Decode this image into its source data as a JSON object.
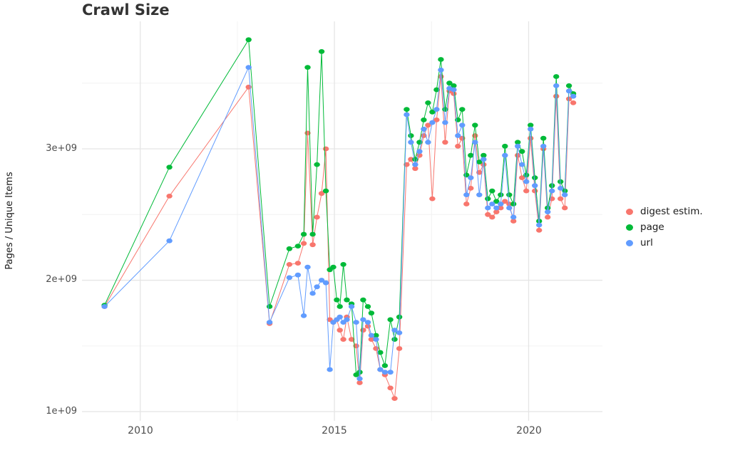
{
  "title": "Crawl Size",
  "ylabel": "Pages / Unique Items",
  "legend": [
    {
      "label": "digest estim.",
      "color": "#F8766D"
    },
    {
      "label": "page",
      "color": "#00BA38"
    },
    {
      "label": "url",
      "color": "#619CFF"
    }
  ],
  "chart_data": {
    "type": "line",
    "title": "Crawl Size",
    "xlabel": "",
    "ylabel": "Pages / Unique Items",
    "x_unit": "decimal year (crawl date)",
    "y_unit": "count x 1e9 (pages / unique items)",
    "xlim": [
      2008.5,
      2021.9
    ],
    "ylim": [
      0.93,
      3.97
    ],
    "x_ticks": [
      2010,
      2015,
      2020
    ],
    "x_tick_labels": [
      "2010",
      "2015",
      "2020"
    ],
    "y_ticks": [
      1,
      2,
      3
    ],
    "y_tick_labels": [
      "1e+09",
      "2e+09",
      "3e+09"
    ],
    "x_minor_gridlines": [
      2012.5,
      2017.5
    ],
    "y_minor_gridlines": [
      1.5,
      2.5,
      3.5
    ],
    "grid": true,
    "legend_position": "right",
    "series": [
      {
        "name": "digest estim.",
        "color": "#F8766D",
        "points": [
          [
            2009.08,
            1.8
          ],
          [
            2010.75,
            2.64
          ],
          [
            2012.79,
            3.47
          ],
          [
            2013.33,
            1.67
          ],
          [
            2013.84,
            2.12
          ],
          [
            2014.06,
            2.13
          ],
          [
            2014.21,
            2.28
          ],
          [
            2014.31,
            3.12
          ],
          [
            2014.44,
            2.27
          ],
          [
            2014.55,
            2.48
          ],
          [
            2014.67,
            2.66
          ],
          [
            2014.78,
            3.0
          ],
          [
            2014.88,
            1.7
          ],
          [
            2014.97,
            1.68
          ],
          [
            2015.06,
            1.7
          ],
          [
            2015.14,
            1.62
          ],
          [
            2015.23,
            1.55
          ],
          [
            2015.32,
            1.72
          ],
          [
            2015.44,
            1.55
          ],
          [
            2015.56,
            1.5
          ],
          [
            2015.65,
            1.22
          ],
          [
            2015.74,
            1.62
          ],
          [
            2015.86,
            1.65
          ],
          [
            2015.95,
            1.55
          ],
          [
            2016.07,
            1.48
          ],
          [
            2016.18,
            1.32
          ],
          [
            2016.3,
            1.28
          ],
          [
            2016.44,
            1.18
          ],
          [
            2016.55,
            1.1
          ],
          [
            2016.67,
            1.48
          ],
          [
            2016.86,
            2.88
          ],
          [
            2016.97,
            2.92
          ],
          [
            2017.08,
            2.85
          ],
          [
            2017.19,
            2.95
          ],
          [
            2017.3,
            3.1
          ],
          [
            2017.41,
            3.18
          ],
          [
            2017.52,
            2.62
          ],
          [
            2017.63,
            3.22
          ],
          [
            2017.74,
            3.55
          ],
          [
            2017.85,
            3.05
          ],
          [
            2017.96,
            3.44
          ],
          [
            2018.07,
            3.42
          ],
          [
            2018.18,
            3.02
          ],
          [
            2018.29,
            3.08
          ],
          [
            2018.4,
            2.58
          ],
          [
            2018.51,
            2.7
          ],
          [
            2018.62,
            3.1
          ],
          [
            2018.73,
            2.82
          ],
          [
            2018.84,
            2.88
          ],
          [
            2018.95,
            2.5
          ],
          [
            2019.06,
            2.48
          ],
          [
            2019.17,
            2.52
          ],
          [
            2019.28,
            2.55
          ],
          [
            2019.39,
            2.6
          ],
          [
            2019.5,
            2.58
          ],
          [
            2019.61,
            2.45
          ],
          [
            2019.72,
            2.95
          ],
          [
            2019.83,
            2.78
          ],
          [
            2019.94,
            2.68
          ],
          [
            2020.05,
            3.08
          ],
          [
            2020.16,
            2.68
          ],
          [
            2020.27,
            2.38
          ],
          [
            2020.38,
            3.0
          ],
          [
            2020.49,
            2.48
          ],
          [
            2020.6,
            2.62
          ],
          [
            2020.71,
            3.4
          ],
          [
            2020.82,
            2.62
          ],
          [
            2020.93,
            2.55
          ],
          [
            2021.04,
            3.38
          ],
          [
            2021.15,
            3.35
          ]
        ]
      },
      {
        "name": "page",
        "color": "#00BA38",
        "points": [
          [
            2009.08,
            1.81
          ],
          [
            2010.75,
            2.86
          ],
          [
            2012.79,
            3.83
          ],
          [
            2013.33,
            1.8
          ],
          [
            2013.84,
            2.24
          ],
          [
            2014.06,
            2.26
          ],
          [
            2014.21,
            2.35
          ],
          [
            2014.31,
            3.62
          ],
          [
            2014.44,
            2.35
          ],
          [
            2014.55,
            2.88
          ],
          [
            2014.67,
            3.74
          ],
          [
            2014.78,
            2.68
          ],
          [
            2014.88,
            2.08
          ],
          [
            2014.97,
            2.1
          ],
          [
            2015.06,
            1.85
          ],
          [
            2015.14,
            1.8
          ],
          [
            2015.23,
            2.12
          ],
          [
            2015.32,
            1.85
          ],
          [
            2015.44,
            1.82
          ],
          [
            2015.56,
            1.28
          ],
          [
            2015.65,
            1.3
          ],
          [
            2015.74,
            1.85
          ],
          [
            2015.86,
            1.8
          ],
          [
            2015.95,
            1.75
          ],
          [
            2016.07,
            1.58
          ],
          [
            2016.18,
            1.45
          ],
          [
            2016.3,
            1.35
          ],
          [
            2016.44,
            1.7
          ],
          [
            2016.55,
            1.55
          ],
          [
            2016.67,
            1.72
          ],
          [
            2016.86,
            3.3
          ],
          [
            2016.97,
            3.1
          ],
          [
            2017.08,
            2.92
          ],
          [
            2017.19,
            3.05
          ],
          [
            2017.3,
            3.22
          ],
          [
            2017.41,
            3.35
          ],
          [
            2017.52,
            3.28
          ],
          [
            2017.63,
            3.45
          ],
          [
            2017.74,
            3.68
          ],
          [
            2017.85,
            3.3
          ],
          [
            2017.96,
            3.5
          ],
          [
            2018.07,
            3.48
          ],
          [
            2018.18,
            3.22
          ],
          [
            2018.29,
            3.3
          ],
          [
            2018.4,
            2.8
          ],
          [
            2018.51,
            2.95
          ],
          [
            2018.62,
            3.18
          ],
          [
            2018.73,
            2.9
          ],
          [
            2018.84,
            2.95
          ],
          [
            2018.95,
            2.62
          ],
          [
            2019.06,
            2.68
          ],
          [
            2019.17,
            2.6
          ],
          [
            2019.28,
            2.65
          ],
          [
            2019.39,
            3.02
          ],
          [
            2019.5,
            2.65
          ],
          [
            2019.61,
            2.58
          ],
          [
            2019.72,
            3.05
          ],
          [
            2019.83,
            2.98
          ],
          [
            2019.94,
            2.8
          ],
          [
            2020.05,
            3.18
          ],
          [
            2020.16,
            2.78
          ],
          [
            2020.27,
            2.45
          ],
          [
            2020.38,
            3.08
          ],
          [
            2020.49,
            2.55
          ],
          [
            2020.6,
            2.72
          ],
          [
            2020.71,
            3.55
          ],
          [
            2020.82,
            2.75
          ],
          [
            2020.93,
            2.68
          ],
          [
            2021.04,
            3.48
          ],
          [
            2021.15,
            3.42
          ]
        ]
      },
      {
        "name": "url",
        "color": "#619CFF",
        "points": [
          [
            2009.08,
            1.8
          ],
          [
            2010.75,
            2.3
          ],
          [
            2012.79,
            3.62
          ],
          [
            2013.33,
            1.68
          ],
          [
            2013.84,
            2.02
          ],
          [
            2014.06,
            2.04
          ],
          [
            2014.21,
            1.73
          ],
          [
            2014.31,
            2.1
          ],
          [
            2014.44,
            1.9
          ],
          [
            2014.55,
            1.95
          ],
          [
            2014.67,
            2.0
          ],
          [
            2014.78,
            1.98
          ],
          [
            2014.88,
            1.32
          ],
          [
            2014.97,
            1.68
          ],
          [
            2015.06,
            1.7
          ],
          [
            2015.14,
            1.72
          ],
          [
            2015.23,
            1.68
          ],
          [
            2015.32,
            1.7
          ],
          [
            2015.44,
            1.8
          ],
          [
            2015.56,
            1.68
          ],
          [
            2015.65,
            1.25
          ],
          [
            2015.74,
            1.7
          ],
          [
            2015.86,
            1.68
          ],
          [
            2015.95,
            1.58
          ],
          [
            2016.07,
            1.55
          ],
          [
            2016.18,
            1.32
          ],
          [
            2016.3,
            1.3
          ],
          [
            2016.44,
            1.3
          ],
          [
            2016.55,
            1.62
          ],
          [
            2016.67,
            1.6
          ],
          [
            2016.86,
            3.26
          ],
          [
            2016.97,
            3.05
          ],
          [
            2017.08,
            2.88
          ],
          [
            2017.19,
            2.98
          ],
          [
            2017.3,
            3.15
          ],
          [
            2017.41,
            3.05
          ],
          [
            2017.52,
            3.2
          ],
          [
            2017.63,
            3.3
          ],
          [
            2017.74,
            3.6
          ],
          [
            2017.85,
            3.2
          ],
          [
            2017.96,
            3.46
          ],
          [
            2018.07,
            3.45
          ],
          [
            2018.18,
            3.1
          ],
          [
            2018.29,
            3.18
          ],
          [
            2018.4,
            2.65
          ],
          [
            2018.51,
            2.78
          ],
          [
            2018.62,
            3.05
          ],
          [
            2018.73,
            2.65
          ],
          [
            2018.84,
            2.92
          ],
          [
            2018.95,
            2.55
          ],
          [
            2019.06,
            2.58
          ],
          [
            2019.17,
            2.55
          ],
          [
            2019.28,
            2.58
          ],
          [
            2019.39,
            2.95
          ],
          [
            2019.5,
            2.55
          ],
          [
            2019.61,
            2.48
          ],
          [
            2019.72,
            3.02
          ],
          [
            2019.83,
            2.88
          ],
          [
            2019.94,
            2.75
          ],
          [
            2020.05,
            3.15
          ],
          [
            2020.16,
            2.72
          ],
          [
            2020.27,
            2.42
          ],
          [
            2020.38,
            3.02
          ],
          [
            2020.49,
            2.52
          ],
          [
            2020.6,
            2.68
          ],
          [
            2020.71,
            3.48
          ],
          [
            2020.82,
            2.7
          ],
          [
            2020.93,
            2.65
          ],
          [
            2021.04,
            3.44
          ],
          [
            2021.15,
            3.4
          ]
        ]
      }
    ]
  }
}
